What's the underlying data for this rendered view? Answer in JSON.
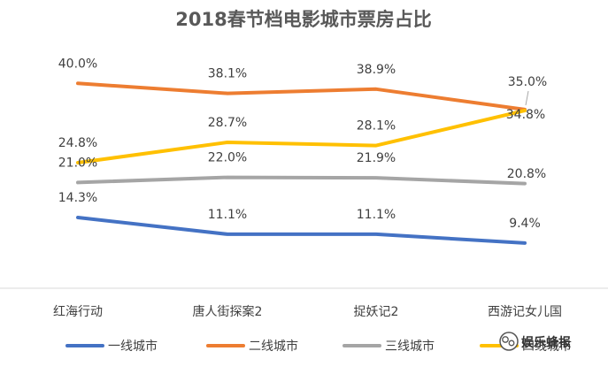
{
  "chart_data": {
    "type": "line",
    "title": "2018春节档电影城市票房占比",
    "categories": [
      "红海行动",
      "唐人街探案2",
      "捉妖记2",
      "西游记女儿国"
    ],
    "series": [
      {
        "name": "一线城市",
        "color": "#4472C4",
        "values": [
          14.3,
          11.1,
          11.1,
          9.4
        ],
        "labels": [
          "14.3%",
          "11.1%",
          "11.1%",
          "9.4%"
        ]
      },
      {
        "name": "二线城市",
        "color": "#ED7D31",
        "values": [
          40.0,
          38.1,
          38.9,
          35.0
        ],
        "labels": [
          "40.0%",
          "38.1%",
          "38.9%",
          "35.0%"
        ]
      },
      {
        "name": "三线城市",
        "color": "#A5A5A5",
        "values": [
          21.0,
          22.0,
          21.9,
          20.8
        ],
        "labels": [
          "21.0%",
          "22.0%",
          "21.9%",
          "20.8%"
        ]
      },
      {
        "name": "四线城市",
        "color": "#FFC000",
        "values": [
          24.8,
          28.7,
          28.1,
          34.8
        ],
        "labels": [
          "24.8%",
          "28.7%",
          "28.1%",
          "34.8%"
        ]
      }
    ],
    "xlabel": "",
    "ylabel": "",
    "grid": false,
    "legend": "bottom"
  },
  "watermark": {
    "text": "娱乐蜂报",
    "icon": "wechat-icon"
  }
}
